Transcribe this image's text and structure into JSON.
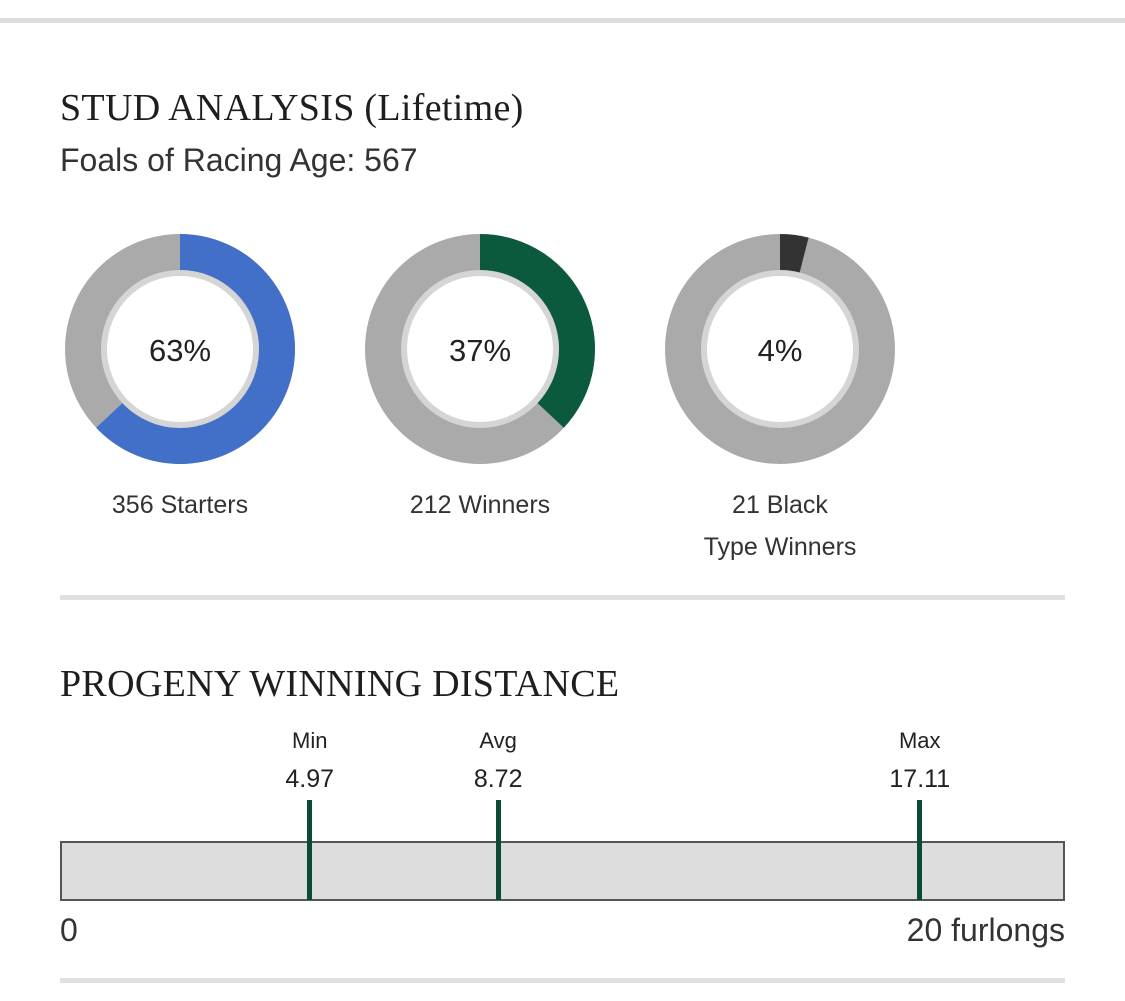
{
  "stud_analysis": {
    "title": "STUD ANALYSIS (Lifetime)",
    "subtitle": "Foals of Racing Age: 567"
  },
  "chart_data": [
    {
      "type": "pie",
      "variant": "donut-set",
      "title": "STUD ANALYSIS (Lifetime)",
      "total_label": "Foals of Racing Age",
      "total": 567,
      "track_color": "#aaaaaa",
      "rings": [
        {
          "name": "Starters",
          "percent": 63,
          "percent_label": "63%",
          "count": 356,
          "caption": "356 Starters",
          "color": "#4270c8"
        },
        {
          "name": "Winners",
          "percent": 37,
          "percent_label": "37%",
          "count": 212,
          "caption": "212 Winners",
          "color": "#0b5a3e"
        },
        {
          "name": "Black Type Winners",
          "percent": 4,
          "percent_label": "4%",
          "count": 21,
          "caption_lines": [
            "21 Black",
            "Type Winners"
          ],
          "color": "#333333"
        }
      ]
    },
    {
      "type": "range",
      "title": "PROGENY WINNING DISTANCE",
      "xlim": [
        0,
        20
      ],
      "unit": "furlongs",
      "min_tick_label": "0",
      "max_tick_label": "20 furlongs",
      "marker_color": "#0b4a35",
      "bar_color": "#dddddd",
      "markers": [
        {
          "label": "Min",
          "value": 4.97,
          "value_label": "4.97"
        },
        {
          "label": "Avg",
          "value": 8.72,
          "value_label": "8.72"
        },
        {
          "label": "Max",
          "value": 17.11,
          "value_label": "17.11"
        }
      ]
    }
  ]
}
